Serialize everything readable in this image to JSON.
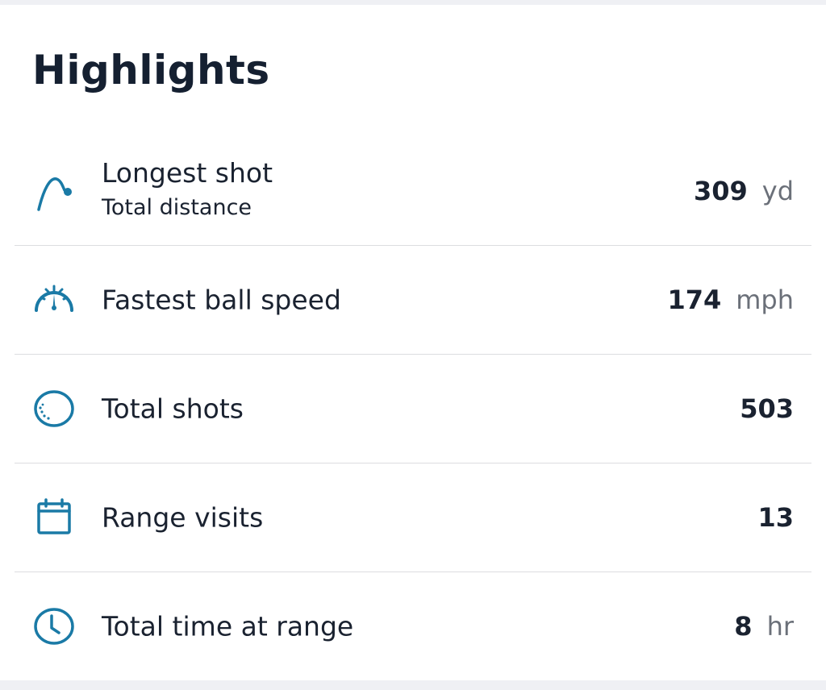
{
  "title": "Highlights",
  "accent": "#1a7aa6",
  "items": [
    {
      "icon": "ball-trajectory-icon",
      "label": "Longest shot",
      "sublabel": "Total distance",
      "value": "309",
      "unit": "yd"
    },
    {
      "icon": "speedometer-icon",
      "label": "Fastest ball speed",
      "value": "174",
      "unit": "mph"
    },
    {
      "icon": "golf-ball-icon",
      "label": "Total shots",
      "value": "503"
    },
    {
      "icon": "calendar-icon",
      "label": "Range visits",
      "value": "13"
    },
    {
      "icon": "clock-icon",
      "label": "Total time at range",
      "value": "8",
      "unit": "hr"
    }
  ]
}
